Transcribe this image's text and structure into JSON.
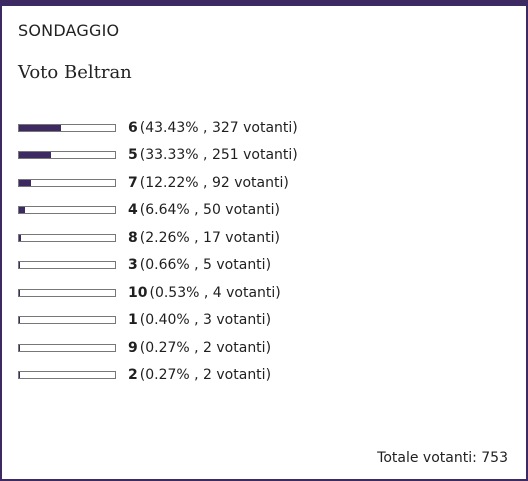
{
  "poll": {
    "header": "SONDAGGIO",
    "title": "Voto Beltran",
    "options": [
      {
        "label": "6",
        "detail": "(43.43% , 327 votanti)",
        "percent": 43.43
      },
      {
        "label": "5",
        "detail": "(33.33% , 251 votanti)",
        "percent": 33.33
      },
      {
        "label": "7",
        "detail": "(12.22% , 92 votanti)",
        "percent": 12.22
      },
      {
        "label": "4",
        "detail": "(6.64% , 50 votanti)",
        "percent": 6.64
      },
      {
        "label": "8",
        "detail": "(2.26% , 17 votanti)",
        "percent": 2.26
      },
      {
        "label": "3",
        "detail": "(0.66% , 5 votanti)",
        "percent": 0.66
      },
      {
        "label": "10",
        "detail": "(0.53% , 4 votanti)",
        "percent": 0.53
      },
      {
        "label": "1",
        "detail": "(0.40% , 3 votanti)",
        "percent": 0.4
      },
      {
        "label": "9",
        "detail": "(0.27% , 2 votanti)",
        "percent": 0.27
      },
      {
        "label": "2",
        "detail": "(0.27% , 2 votanti)",
        "percent": 0.27
      }
    ],
    "total": "Totale votanti: 753",
    "accent_color": "#3d2a63"
  }
}
